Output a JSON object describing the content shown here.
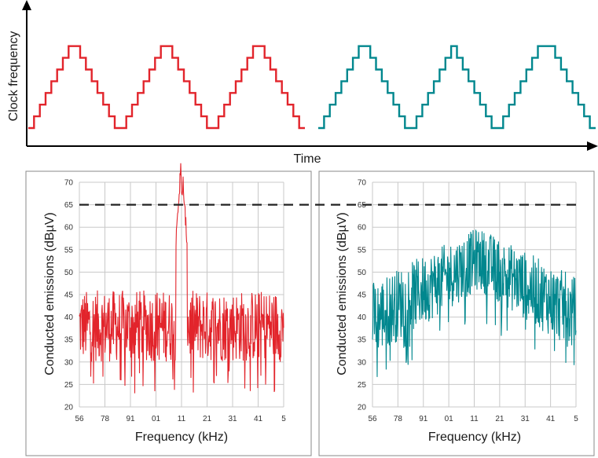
{
  "colors": {
    "red": "#e2242b",
    "teal": "#00878e",
    "grid": "#c8c8c8",
    "frame": "#8a8a8a",
    "dash": "#222222"
  },
  "top_diagram": {
    "ylabel": "Clock frequency",
    "xlabel": "Time",
    "series": [
      {
        "color": "red",
        "steps": [
          0,
          1,
          2,
          3,
          4,
          5,
          6,
          7,
          7,
          6,
          5,
          4,
          3,
          2,
          1,
          0,
          0,
          1,
          2,
          3,
          4,
          5,
          6,
          7,
          7,
          6,
          5,
          4,
          3,
          2,
          1,
          0,
          0,
          1,
          2,
          3,
          4,
          5,
          6,
          7,
          7,
          6,
          5,
          4,
          3,
          2,
          1,
          0
        ]
      },
      {
        "color": "teal",
        "steps": [
          0,
          1,
          2,
          3,
          4,
          5,
          6,
          7,
          7,
          6,
          5,
          4,
          3,
          2,
          1,
          0,
          0,
          1,
          2,
          3,
          4,
          5,
          6,
          7,
          6,
          5,
          4,
          3,
          2,
          1,
          0,
          0,
          1,
          2,
          3,
          4,
          5,
          6,
          7,
          7,
          7,
          6,
          5,
          4,
          3,
          2,
          1,
          0
        ]
      }
    ]
  },
  "chart_data": [
    {
      "type": "line",
      "title": "",
      "xlabel": "Frequency (kHz)",
      "ylabel": "Conducted emissions (dBµV)",
      "x_ticks": [
        "56",
        "78",
        "91",
        "01",
        "11",
        "21",
        "31",
        "41",
        "5"
      ],
      "ylim": [
        20,
        70
      ],
      "y_ticks": [
        20,
        25,
        30,
        35,
        40,
        45,
        50,
        55,
        60,
        65,
        70
      ],
      "grid": true,
      "limit_line": 65,
      "series": [
        {
          "color": "red",
          "noise_floor_dbuv": 38,
          "band_low_dbuv": 30,
          "band_high_dbuv": 46,
          "peak_dbuv": 65,
          "peak_x_fraction": 0.5
        }
      ]
    },
    {
      "type": "line",
      "title": "",
      "xlabel": "Frequency (kHz)",
      "ylabel": "Conducted emissions (dBµV)",
      "x_ticks": [
        "56",
        "78",
        "91",
        "01",
        "11",
        "21",
        "31",
        "41",
        "5"
      ],
      "ylim": [
        20,
        70
      ],
      "y_ticks": [
        20,
        25,
        30,
        35,
        40,
        45,
        50,
        55,
        60,
        65,
        70
      ],
      "grid": true,
      "limit_line": 65,
      "series": [
        {
          "color": "teal",
          "edge_low_dbuv": 31,
          "edge_high_dbuv": 48,
          "center_low_dbuv": 46,
          "center_high_dbuv": 60,
          "center_x_fraction": 0.52
        }
      ]
    }
  ]
}
